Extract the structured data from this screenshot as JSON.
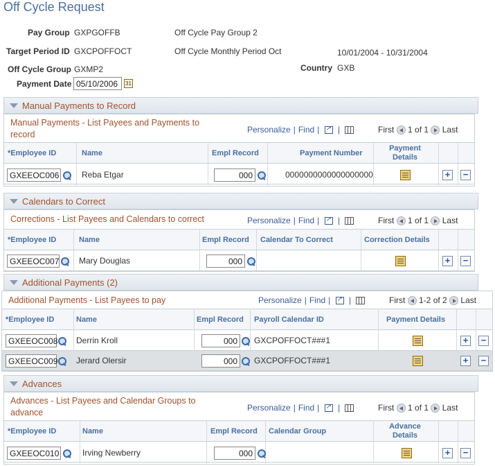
{
  "page_title": "Off Cycle Request",
  "header": {
    "pay_group": {
      "label": "Pay Group",
      "code": "GXPGOFFB",
      "desc": "Off Cycle Pay Group 2"
    },
    "target_period": {
      "label": "Target Period ID",
      "code": "GXCPOFFOCT",
      "desc": "Off Cycle Monthly Period Oct",
      "range": "10/01/2004 -  10/31/2004"
    },
    "off_cycle_group": {
      "label": "Off Cycle Group",
      "code": "GXMP2"
    },
    "country": {
      "label": "Country",
      "value": "GXB"
    },
    "payment_date": {
      "label": "Payment Date",
      "value": "05/10/2006"
    }
  },
  "grid_nav": {
    "personalize": "Personalize",
    "find": "Find",
    "first": "First",
    "last": "Last"
  },
  "manual": {
    "section": "Manual Payments to Record",
    "grid_title": "Manual Payments - List Payees and Payments to record",
    "count": "1 of 1",
    "cols": [
      "*Employee ID",
      "Name",
      "Empl Record",
      "Payment Number",
      "Payment Details"
    ],
    "rows": [
      {
        "emplid": "GXEEOC006",
        "name": "Reba Etgar",
        "rcd": "000",
        "paynum": "0000000000000000000"
      }
    ]
  },
  "calendars": {
    "section": "Calendars to Correct",
    "grid_title": "Corrections - List Payees and Calendars to correct",
    "count": "1 of 1",
    "cols": [
      "*Employee ID",
      "Name",
      "Empl Record",
      "Calendar To Correct",
      "Correction Details"
    ],
    "rows": [
      {
        "emplid": "GXEEOC007",
        "name": "Mary Douglas",
        "rcd": "000"
      }
    ]
  },
  "additional": {
    "section": "Additional Payments (2)",
    "grid_title": "Additional Payments - List Payees to pay",
    "count": "1-2 of 2",
    "cols": [
      "*Employee ID",
      "Name",
      "Empl Record",
      "Payroll Calendar ID",
      "Payment Details"
    ],
    "rows": [
      {
        "emplid": "GXEEOC008",
        "name": "Derrin Kroll",
        "rcd": "000",
        "cal": "GXCPOFFOCT###1"
      },
      {
        "emplid": "GXEEOC009",
        "name": "Jerard Olersir",
        "rcd": "000",
        "cal": "GXCPOFFOCT###1"
      }
    ]
  },
  "advances": {
    "section": "Advances",
    "grid_title": "Advances - List Payees and Calendar Groups to advance",
    "count": "1 of 1",
    "cols": [
      "*Employee ID",
      "Name",
      "Empl Record",
      "Calendar Group",
      "Advance Details"
    ],
    "rows": [
      {
        "emplid": "GXEEOC010",
        "name": "Irving Newberry",
        "rcd": "000"
      }
    ]
  }
}
